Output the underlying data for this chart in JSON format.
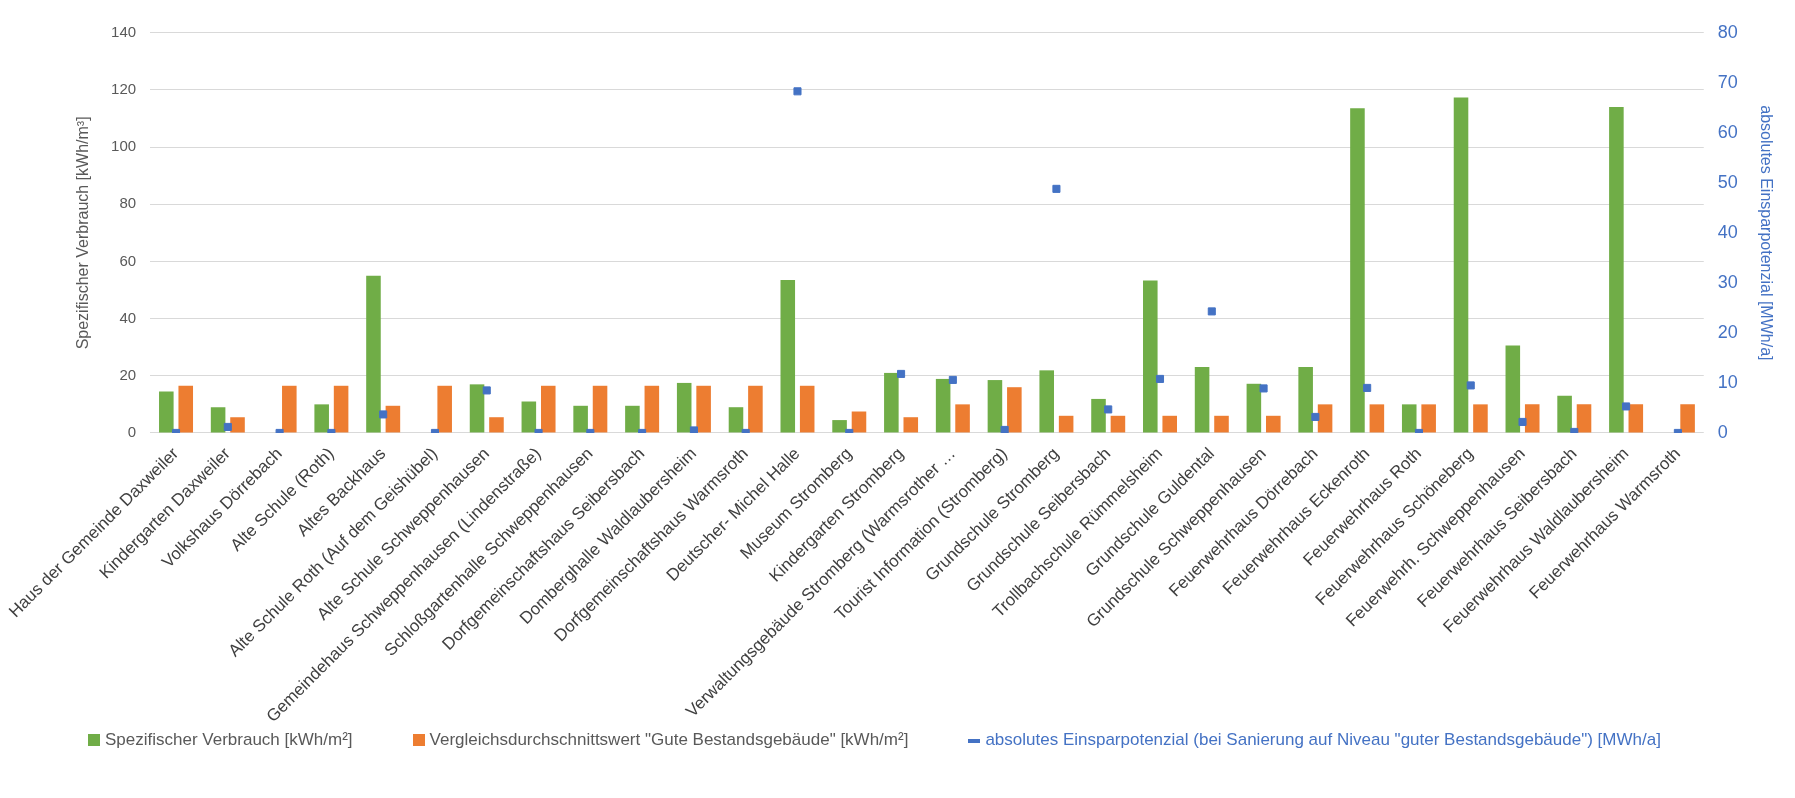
{
  "chart_data": {
    "type": "bar",
    "categories": [
      "Haus der Gemeinde Daxweiler",
      "Kindergarten Daxweiler",
      "Volkshaus Dörrebach",
      "Alte Schule (Roth)",
      "Altes Backhaus",
      "Alte Schule Roth (Auf dem Geishübel)",
      "Alte Schule Schweppenhausen",
      "Gemeindehaus Schweppenhausen (Lindenstraße)",
      "Schloßgartenhalle Schweppenhausen",
      "Dorfgemeinschaftshaus Seibersbach",
      "Domberghalle Waldlaubersheim",
      "Dorfgemeinschaftshaus Warmsroth",
      "Deutscher- Michel Halle",
      "Museum Stromberg",
      "Kindergarten Stromberg",
      "Verwaltungsgebäude Stromberg (Warmsrother …",
      "Tourist Information (Stromberg)",
      "Grundschule Stromberg",
      "Grundschule Seibersbach",
      "Trollbachschule Rümmelsheim",
      "Grundschule Guldental",
      "Grundschule Schweppenhausen",
      "Feuerwehrhaus Dörrebach",
      "Feuerwehrhaus Eckenroth",
      "Feuerwehrhaus Roth",
      "Feuerwehrhaus Schöneberg",
      "Feuerwehrh. Schweppenhausen",
      "Feuerwehrhaus Seibersbach",
      "Feuerwehrhaus Waldlaubersheim",
      "Feuerwehrhaus Warmsroth"
    ],
    "series": [
      {
        "name": "Spezifischer Verbrauch [kWh/m²]",
        "color": "#70ad47",
        "values": [
          14.5,
          9,
          0,
          10,
          55,
          0,
          17,
          11,
          9.5,
          9.5,
          17.5,
          9,
          53.5,
          4.5,
          21,
          18.9,
          18.5,
          21.9,
          11.9,
          53.3,
          23.1,
          17.2,
          23.1,
          113.6,
          10,
          117.4,
          30.6,
          13,
          114,
          0
        ]
      },
      {
        "name": "Vergleichsdurchschnittswert \"Gute Bestandsgebäude\" [kWh/m²]",
        "color": "#ed7d31",
        "values": [
          16.5,
          5.5,
          16.5,
          16.5,
          9.5,
          16.5,
          5.5,
          16.5,
          16.5,
          16.5,
          16.5,
          16.5,
          16.5,
          7.5,
          5.5,
          10,
          16,
          6,
          6,
          6,
          6,
          6,
          10,
          10,
          10,
          10,
          10,
          10,
          10,
          10
        ]
      },
      {
        "name": "absolutes Einsparpotenzial (bei Sanierung auf Niveau \"guter Bestandsgebäude\") [MWh/a]",
        "type": "scatter",
        "marker": "square",
        "axis": "y2",
        "color": "#4472c4",
        "values": [
          0,
          1.2,
          0,
          0,
          3.7,
          0,
          8.5,
          0,
          0,
          0,
          0.5,
          0,
          68.3,
          0,
          11.8,
          10.6,
          0.6,
          48.8,
          4.7,
          10.8,
          24.3,
          8.9,
          3.2,
          9,
          0,
          9.5,
          2.2,
          0.2,
          5.3,
          0
        ]
      }
    ],
    "ylabel": "Spezifischer Verbrauch [kWh/m³]",
    "y2label": "absolutes Einsparpotenzial [MWh/a]",
    "ylim": [
      0,
      140
    ],
    "yticks": [
      0,
      20,
      40,
      60,
      80,
      100,
      120,
      140
    ],
    "y2lim": [
      0,
      80
    ],
    "y2ticks": [
      0,
      10,
      20,
      30,
      40,
      50,
      60,
      70,
      80
    ],
    "grid": "y",
    "legend": "bottom"
  }
}
